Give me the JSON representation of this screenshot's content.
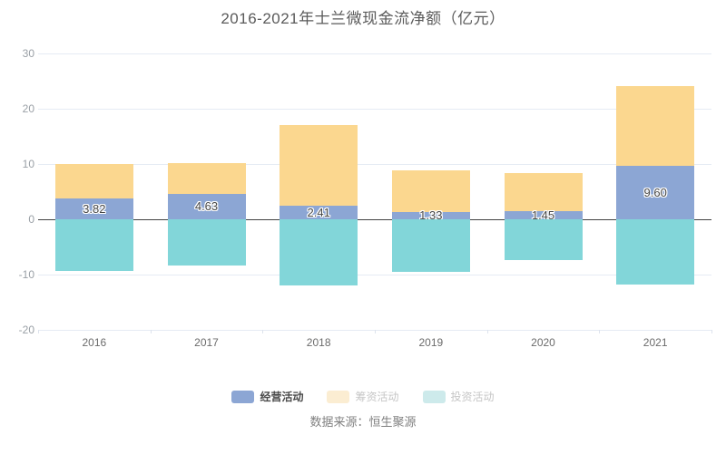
{
  "source": "数据来源：恒生聚源",
  "chart_data": {
    "type": "bar",
    "stacked": true,
    "title": "2016-2021年士兰微现金流净额（亿元）",
    "categories": [
      "2016",
      "2017",
      "2018",
      "2019",
      "2020",
      "2021"
    ],
    "series": [
      {
        "name": "经营活动",
        "color": "#8CA6D4",
        "values": [
          3.82,
          4.63,
          2.41,
          1.33,
          1.45,
          9.6
        ],
        "data_labels": [
          "3.82",
          "4.63",
          "2.41",
          "1.33",
          "1.45",
          "9.60"
        ]
      },
      {
        "name": "筹资活动",
        "color": "#FBD78F",
        "values": [
          6.2,
          5.5,
          14.6,
          7.6,
          6.9,
          14.5
        ]
      },
      {
        "name": "投资活动",
        "color": "#82D6D9",
        "values": [
          -9.3,
          -8.4,
          -11.9,
          -9.5,
          -7.4,
          -11.8
        ]
      }
    ],
    "ylim": [
      -20,
      30
    ],
    "yticks": [
      30,
      20,
      10,
      0,
      -10,
      -20
    ],
    "grid": true,
    "legend_position": "bottom",
    "zero_line_color": "#424242",
    "gridline_color": "#e5ebf4"
  },
  "legend": {
    "items": [
      {
        "label": "经营活动",
        "swatch": "#8CA6D4",
        "text_color": "#4a4a4a",
        "emphasis": true
      },
      {
        "label": "筹资活动",
        "swatch": "#FBEDD2",
        "text_color": "#c6c6c6",
        "emphasis": false
      },
      {
        "label": "投资活动",
        "swatch": "#CDEAEB",
        "text_color": "#c6c6c6",
        "emphasis": false
      }
    ]
  }
}
